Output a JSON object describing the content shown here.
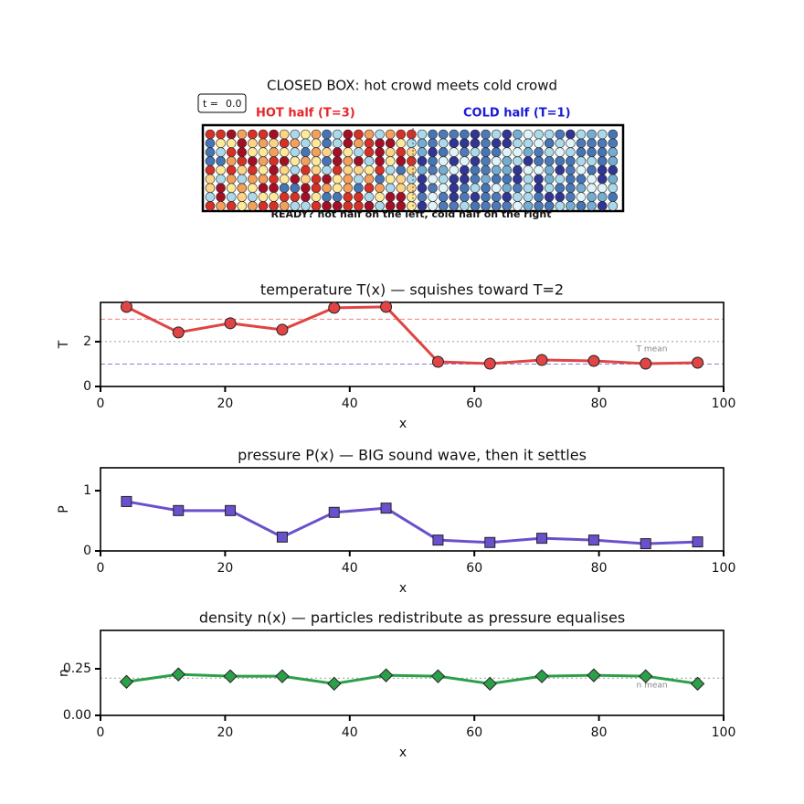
{
  "chart_data": [
    {
      "type": "box",
      "title": "CLOSED BOX: hot crowd meets cold crowd",
      "time_label": "t =",
      "time_value": "0.0",
      "left_label": "HOT half (T=3)",
      "left_color": "#e8262a",
      "right_label": "COLD half (T=1)",
      "right_color": "#1a1ad6",
      "caption": "READY?  hot half on the left, cold half on the right"
    },
    {
      "type": "line",
      "title": "temperature T(x)  — squishes toward T=2",
      "xlabel": "x",
      "ylabel": "T",
      "marker": "circle",
      "color": "#e04444",
      "marker_color": "#e04444",
      "x": [
        4.17,
        12.5,
        20.83,
        29.17,
        37.5,
        45.83,
        54.17,
        62.5,
        70.83,
        79.17,
        87.5,
        95.83
      ],
      "values": [
        3.55,
        2.41,
        2.82,
        2.53,
        3.51,
        3.55,
        1.1,
        1.02,
        1.18,
        1.14,
        1.02,
        1.06
      ],
      "xlim": [
        0,
        100
      ],
      "xticks": [
        0,
        20,
        40,
        60,
        80,
        100
      ],
      "ylim": [
        0,
        3.75
      ],
      "yticks": [
        0,
        2
      ],
      "ref_lines": [
        {
          "value": 3,
          "color": "#f08080",
          "dash": "5,3"
        },
        {
          "value": 2,
          "color": "#999999",
          "dash": "2,3"
        },
        {
          "value": 1,
          "color": "#8080e0",
          "dash": "5,3"
        }
      ],
      "mean_label": "T mean",
      "mean": 2
    },
    {
      "type": "line",
      "title": "pressure P(x)  — BIG sound wave, then it settles",
      "xlabel": "x",
      "ylabel": "P",
      "marker": "square",
      "color": "#6a50cc",
      "marker_color": "#6a50cc",
      "x": [
        4.17,
        12.5,
        20.83,
        29.17,
        37.5,
        45.83,
        54.17,
        62.5,
        70.83,
        79.17,
        87.5,
        95.83
      ],
      "values": [
        0.82,
        0.67,
        0.67,
        0.23,
        0.64,
        0.71,
        0.18,
        0.14,
        0.21,
        0.18,
        0.12,
        0.15
      ],
      "xlim": [
        0,
        100
      ],
      "xticks": [
        0,
        20,
        40,
        60,
        80,
        100
      ],
      "ylim": [
        0,
        1.38
      ],
      "yticks": [
        0,
        1
      ]
    },
    {
      "type": "line",
      "title": "density n(x)  — particles redistribute as pressure equalises",
      "xlabel": "x",
      "ylabel": "n",
      "marker": "diamond",
      "color": "#2ca048",
      "marker_color": "#2ca048",
      "x": [
        4.17,
        12.5,
        20.83,
        29.17,
        37.5,
        45.83,
        54.17,
        62.5,
        70.83,
        79.17,
        87.5,
        95.83
      ],
      "values": [
        0.18,
        0.22,
        0.21,
        0.21,
        0.17,
        0.215,
        0.21,
        0.17,
        0.21,
        0.215,
        0.21,
        0.17
      ],
      "xlim": [
        0,
        100
      ],
      "xticks": [
        0,
        20,
        40,
        60,
        80,
        100
      ],
      "ylim": [
        0,
        0.456
      ],
      "yticks": [
        {
          "value": 0,
          "label": "0.00"
        },
        0.25
      ],
      "ref_lines": [
        {
          "value": 0.2,
          "color": "#999999",
          "dash": "2,3"
        }
      ],
      "mean_label": "n mean",
      "mean": 0.2
    }
  ]
}
